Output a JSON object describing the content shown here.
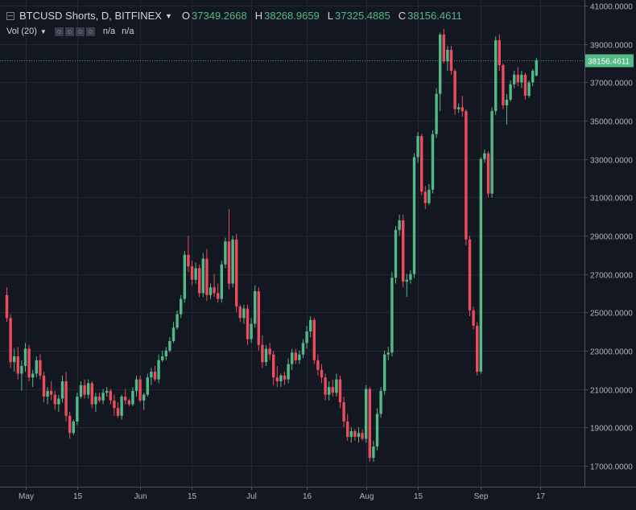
{
  "legend": {
    "symbol": "BTCUSD Shorts, D, BITFINEX",
    "open_label": "O",
    "open": "37349.2668",
    "high_label": "H",
    "high": "38268.9659",
    "low_label": "L",
    "low": "37325.4885",
    "close_label": "C",
    "close": "38156.4611"
  },
  "volume": {
    "label": "Vol (20)",
    "value1": "n/a",
    "value2": "n/a"
  },
  "colors": {
    "up": "#53b987",
    "down": "#eb4d5c",
    "background": "#131722",
    "grid": "#242733"
  },
  "chart_data": {
    "type": "candlestick",
    "title": "BTCUSD Shorts, D, BITFINEX",
    "y_ticks": [
      17000,
      19000,
      21000,
      23000,
      25000,
      27000,
      29000,
      31000,
      33000,
      35000,
      37000,
      39000,
      41000
    ],
    "y_tick_labels": [
      "17000.0000",
      "19000.0000",
      "21000.0000",
      "23000.0000",
      "25000.0000",
      "27000.0000",
      "29000.0000",
      "31000.0000",
      "33000.0000",
      "35000.0000",
      "37000.0000",
      "39000.0000",
      "41000.0000"
    ],
    "ylim": [
      15900,
      41300
    ],
    "x_tick_labels": [
      "May",
      "15",
      "Jun",
      "15",
      "Jul",
      "16",
      "Aug",
      "15",
      "Sep",
      "17"
    ],
    "x_tick_index": [
      5,
      19,
      36,
      50,
      66,
      81,
      97,
      111,
      128,
      144
    ],
    "last_price": 38156.4611,
    "last_price_label": "38156.4611",
    "grid": true,
    "candles": [
      [
        25900,
        26300,
        24500,
        24700
      ],
      [
        24700,
        24900,
        22100,
        22400
      ],
      [
        22400,
        23100,
        21900,
        22700
      ],
      [
        22700,
        23200,
        21500,
        21800
      ],
      [
        21800,
        22500,
        20900,
        22200
      ],
      [
        22200,
        23400,
        21900,
        23100
      ],
      [
        23100,
        23300,
        21400,
        21600
      ],
      [
        21600,
        22000,
        21100,
        21800
      ],
      [
        21800,
        22700,
        21600,
        22500
      ],
      [
        22500,
        22800,
        21500,
        21700
      ],
      [
        21700,
        21900,
        20300,
        20600
      ],
      [
        20600,
        21100,
        20200,
        20900
      ],
      [
        20900,
        21400,
        20400,
        20700
      ],
      [
        20700,
        20900,
        19900,
        20200
      ],
      [
        20200,
        20700,
        19800,
        20500
      ],
      [
        20500,
        21700,
        20300,
        21400
      ],
      [
        21400,
        21900,
        19300,
        19600
      ],
      [
        19600,
        19800,
        18400,
        18700
      ],
      [
        18700,
        19400,
        18600,
        19300
      ],
      [
        19300,
        20800,
        19100,
        20600
      ],
      [
        20600,
        21400,
        20500,
        21200
      ],
      [
        21200,
        21500,
        20500,
        20700
      ],
      [
        20700,
        21500,
        20500,
        21300
      ],
      [
        21300,
        21400,
        20000,
        20200
      ],
      [
        20200,
        20800,
        19800,
        20600
      ],
      [
        20600,
        20800,
        20300,
        20400
      ],
      [
        20400,
        21000,
        20200,
        20800
      ],
      [
        20800,
        21100,
        20600,
        20900
      ],
      [
        20900,
        21000,
        20200,
        20400
      ],
      [
        20400,
        20700,
        19600,
        20000
      ],
      [
        20000,
        20300,
        19500,
        19600
      ],
      [
        19600,
        20700,
        19400,
        20600
      ],
      [
        20600,
        21000,
        20200,
        20400
      ],
      [
        20400,
        20500,
        20100,
        20200
      ],
      [
        20200,
        21100,
        20100,
        20900
      ],
      [
        20900,
        21700,
        20600,
        21500
      ],
      [
        21500,
        21700,
        20300,
        20400
      ],
      [
        20400,
        20800,
        19900,
        20700
      ],
      [
        20700,
        21800,
        20600,
        21600
      ],
      [
        21600,
        22100,
        21200,
        21900
      ],
      [
        21900,
        22200,
        21400,
        21500
      ],
      [
        21500,
        22800,
        21300,
        22500
      ],
      [
        22500,
        23000,
        22400,
        22700
      ],
      [
        22700,
        23200,
        22500,
        23000
      ],
      [
        23000,
        23700,
        22900,
        23500
      ],
      [
        23500,
        24500,
        23400,
        24200
      ],
      [
        24200,
        25100,
        24100,
        24900
      ],
      [
        24900,
        25900,
        24700,
        25700
      ],
      [
        25700,
        28200,
        25500,
        28000
      ],
      [
        28000,
        29000,
        27100,
        27400
      ],
      [
        27400,
        27700,
        26400,
        26700
      ],
      [
        26700,
        27600,
        26500,
        27300
      ],
      [
        27300,
        27500,
        25800,
        26000
      ],
      [
        26000,
        28100,
        25800,
        27800
      ],
      [
        27800,
        28300,
        25600,
        25900
      ],
      [
        25900,
        26500,
        25700,
        26300
      ],
      [
        26300,
        27000,
        25800,
        26000
      ],
      [
        26000,
        26500,
        25500,
        25700
      ],
      [
        25700,
        27700,
        25500,
        27500
      ],
      [
        27500,
        28900,
        27300,
        28700
      ],
      [
        28700,
        30400,
        26200,
        26500
      ],
      [
        26500,
        29000,
        26300,
        28800
      ],
      [
        28800,
        29100,
        25000,
        25300
      ],
      [
        25300,
        25400,
        24500,
        24700
      ],
      [
        24700,
        25400,
        24400,
        25200
      ],
      [
        25200,
        25400,
        23300,
        23600
      ],
      [
        23600,
        24700,
        23400,
        24400
      ],
      [
        24400,
        26400,
        24200,
        26100
      ],
      [
        26100,
        26300,
        23000,
        23300
      ],
      [
        23300,
        23800,
        22100,
        22400
      ],
      [
        22400,
        23300,
        22200,
        23100
      ],
      [
        23100,
        23400,
        22500,
        22800
      ],
      [
        22800,
        23000,
        21200,
        21600
      ],
      [
        21600,
        22200,
        21100,
        21400
      ],
      [
        21400,
        21800,
        21100,
        21700
      ],
      [
        21700,
        21900,
        21200,
        21500
      ],
      [
        21500,
        22600,
        21300,
        22300
      ],
      [
        22300,
        23100,
        22000,
        22900
      ],
      [
        22900,
        23100,
        22300,
        22500
      ],
      [
        22500,
        23000,
        22300,
        22800
      ],
      [
        22800,
        23600,
        22600,
        23400
      ],
      [
        23400,
        24300,
        23100,
        24000
      ],
      [
        24000,
        24800,
        23700,
        24600
      ],
      [
        24600,
        24700,
        22300,
        22500
      ],
      [
        22500,
        22800,
        21700,
        22000
      ],
      [
        22000,
        22300,
        21300,
        21600
      ],
      [
        21600,
        21800,
        20400,
        20700
      ],
      [
        20700,
        21400,
        20400,
        21100
      ],
      [
        21100,
        21500,
        20600,
        20800
      ],
      [
        20800,
        21800,
        20600,
        21500
      ],
      [
        21500,
        21700,
        20000,
        20300
      ],
      [
        20300,
        20600,
        19000,
        19300
      ],
      [
        19300,
        19700,
        18300,
        18500
      ],
      [
        18500,
        19000,
        18200,
        18800
      ],
      [
        18800,
        18900,
        18300,
        18500
      ],
      [
        18500,
        19000,
        18200,
        18700
      ],
      [
        18700,
        18900,
        18300,
        18400
      ],
      [
        18400,
        21200,
        18200,
        21000
      ],
      [
        21000,
        21100,
        17200,
        17400
      ],
      [
        17400,
        18300,
        17200,
        18000
      ],
      [
        18000,
        20000,
        17800,
        19700
      ],
      [
        19700,
        21100,
        19500,
        20900
      ],
      [
        20900,
        23000,
        20700,
        22800
      ],
      [
        22800,
        23200,
        22500,
        22900
      ],
      [
        22900,
        27100,
        22700,
        26800
      ],
      [
        26800,
        29500,
        26500,
        29300
      ],
      [
        29300,
        30100,
        29000,
        29800
      ],
      [
        29800,
        30100,
        26300,
        26600
      ],
      [
        26600,
        27000,
        25800,
        26700
      ],
      [
        26700,
        27200,
        26500,
        27000
      ],
      [
        27000,
        33300,
        26800,
        33100
      ],
      [
        33100,
        34400,
        32800,
        34200
      ],
      [
        34200,
        34300,
        31100,
        31300
      ],
      [
        31300,
        31600,
        30400,
        30700
      ],
      [
        30700,
        31700,
        30600,
        31400
      ],
      [
        31400,
        34500,
        31200,
        34300
      ],
      [
        34300,
        36700,
        34100,
        36400
      ],
      [
        36400,
        39600,
        35500,
        39500
      ],
      [
        39500,
        39800,
        38000,
        38100
      ],
      [
        38100,
        38900,
        37600,
        38700
      ],
      [
        38700,
        38900,
        37400,
        37600
      ],
      [
        37600,
        37700,
        35300,
        35600
      ],
      [
        35600,
        35900,
        35400,
        35700
      ],
      [
        35700,
        36300,
        35200,
        35500
      ],
      [
        35500,
        35600,
        28500,
        28800
      ],
      [
        28800,
        29000,
        24800,
        25100
      ],
      [
        25100,
        25300,
        24100,
        24300
      ],
      [
        24300,
        24500,
        21700,
        21900
      ],
      [
        21900,
        33100,
        21800,
        33000
      ],
      [
        33000,
        33500,
        32800,
        33300
      ],
      [
        33300,
        33400,
        31000,
        31200
      ],
      [
        31200,
        35700,
        31000,
        35500
      ],
      [
        35500,
        39400,
        35300,
        39200
      ],
      [
        39200,
        39500,
        37600,
        37900
      ],
      [
        37900,
        38000,
        35600,
        35800
      ],
      [
        35800,
        36400,
        34800,
        36100
      ],
      [
        36100,
        37100,
        36000,
        36900
      ],
      [
        36900,
        37600,
        36700,
        37400
      ],
      [
        37400,
        37800,
        36800,
        37000
      ],
      [
        37000,
        37600,
        36700,
        37400
      ],
      [
        37400,
        37500,
        36100,
        36300
      ],
      [
        36300,
        37100,
        36200,
        37000
      ],
      [
        37000,
        37700,
        36800,
        37600
      ],
      [
        37349.2668,
        38268.9659,
        37325.4885,
        38156.4611
      ]
    ]
  }
}
